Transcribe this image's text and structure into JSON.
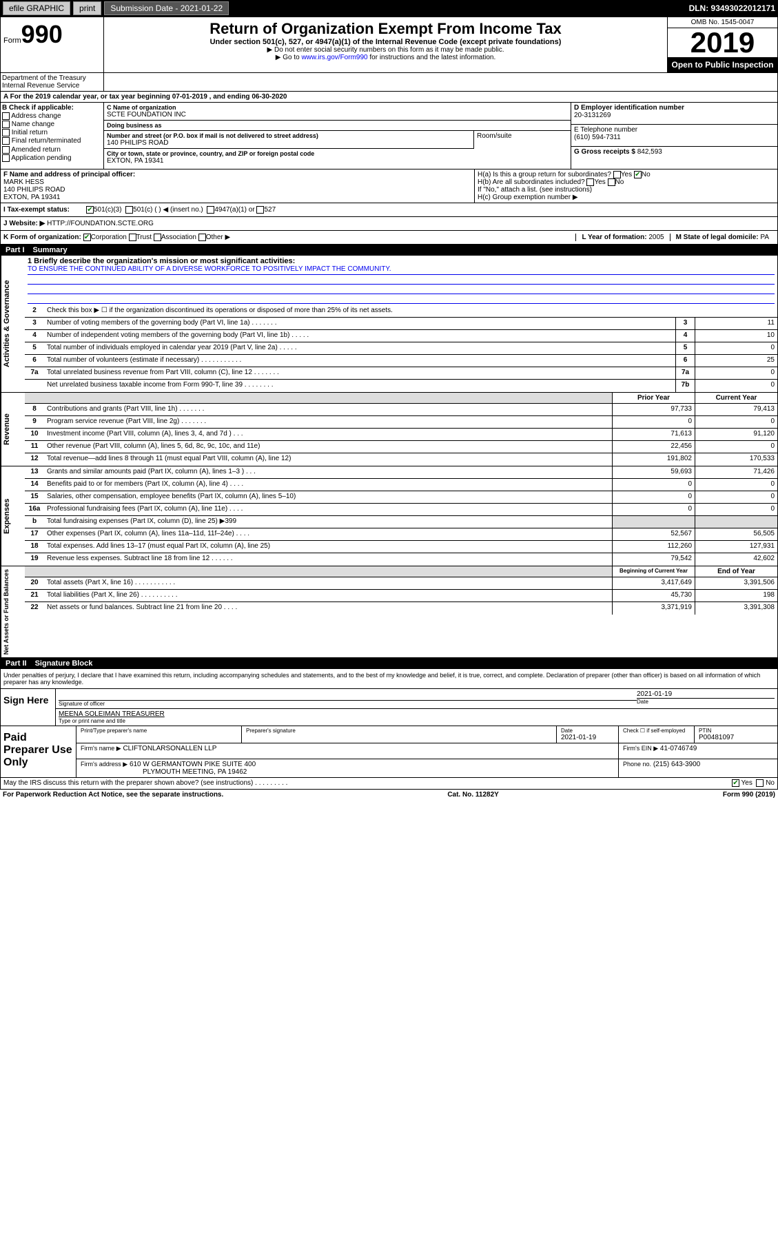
{
  "topbar": {
    "efile": "efile GRAPHIC",
    "print": "print",
    "submission": "Submission Date - 2021-01-22",
    "dln": "DLN: 93493022012171"
  },
  "header": {
    "form_label": "Form",
    "form_no": "990",
    "title": "Return of Organization Exempt From Income Tax",
    "subtitle": "Under section 501(c), 527, or 4947(a)(1) of the Internal Revenue Code (except private foundations)",
    "note1": "▶ Do not enter social security numbers on this form as it may be made public.",
    "note2_pre": "▶ Go to ",
    "note2_link": "www.irs.gov/Form990",
    "note2_post": " for instructions and the latest information.",
    "omb": "OMB No. 1545-0047",
    "year": "2019",
    "open_public": "Open to Public Inspection",
    "dept": "Department of the Treasury\nInternal Revenue Service"
  },
  "period": "A For the 2019 calendar year, or tax year beginning 07-01-2019    , and ending 06-30-2020",
  "section_b": {
    "label": "B Check if applicable:",
    "items": [
      "Address change",
      "Name change",
      "Initial return",
      "Final return/terminated",
      "Amended return",
      "Application pending"
    ]
  },
  "section_c": {
    "name_label": "C Name of organization",
    "name": "SCTE FOUNDATION INC",
    "dba_label": "Doing business as",
    "dba": "",
    "street_label": "Number and street (or P.O. box if mail is not delivered to street address)",
    "street": "140 PHILIPS ROAD",
    "room_label": "Room/suite",
    "city_label": "City or town, state or province, country, and ZIP or foreign postal code",
    "city": "EXTON, PA  19341"
  },
  "section_d": {
    "label": "D Employer identification number",
    "value": "20-3131269"
  },
  "section_e": {
    "label": "E Telephone number",
    "value": "(610) 594-7311"
  },
  "section_g": {
    "label": "G Gross receipts $",
    "value": "842,593"
  },
  "officer": {
    "label": "F  Name and address of principal officer:",
    "name": "MARK HESS",
    "street": "140 PHILIPS ROAD",
    "city": "EXTON, PA  19341"
  },
  "section_h": {
    "ha": "H(a)  Is this a group return for subordinates?",
    "hb": "H(b)  Are all subordinates included?",
    "hb_note": "If \"No,\" attach a list. (see instructions)",
    "hc": "H(c)  Group exemption number ▶"
  },
  "tax_status": {
    "label": "I    Tax-exempt status:",
    "opt1": "501(c)(3)",
    "opt2": "501(c) (  ) ◀ (insert no.)",
    "opt3": "4947(a)(1) or",
    "opt4": "527"
  },
  "website": {
    "label": "J   Website: ▶",
    "value": "HTTP://FOUNDATION.SCTE.ORG"
  },
  "form_org": {
    "k_label": "K Form of organization:",
    "corp": "Corporation",
    "trust": "Trust",
    "assoc": "Association",
    "other": "Other ▶",
    "l_label": "L Year of formation:",
    "l_val": "2005",
    "m_label": "M State of legal domicile:",
    "m_val": "PA"
  },
  "part1": {
    "num": "Part I",
    "title": "Summary"
  },
  "governance": {
    "label": "Activities & Governance",
    "l1": "1  Briefly describe the organization's mission or most significant activities:",
    "mission": "TO ENSURE THE CONTINUED ABILITY OF A DIVERSE WORKFORCE TO POSITIVELY IMPACT THE COMMUNITY.",
    "l2": "Check this box ▶ ☐  if the organization discontinued its operations or disposed of more than 25% of its net assets.",
    "lines": [
      {
        "n": "3",
        "d": "Number of voting members of the governing body (Part VI, line 1a)  .   .   .   .   .   .   .",
        "c": "3",
        "v": "11"
      },
      {
        "n": "4",
        "d": "Number of independent voting members of the governing body (Part VI, line 1b)  .   .   .   .   .",
        "c": "4",
        "v": "10"
      },
      {
        "n": "5",
        "d": "Total number of individuals employed in calendar year 2019 (Part V, line 2a)  .   .   .   .   .",
        "c": "5",
        "v": "0"
      },
      {
        "n": "6",
        "d": "Total number of volunteers (estimate if necessary)  .   .   .   .   .   .   .   .   .   .   .",
        "c": "6",
        "v": "25"
      },
      {
        "n": "7a",
        "d": "Total unrelated business revenue from Part VIII, column (C), line 12  .   .   .   .   .   .   .",
        "c": "7a",
        "v": "0"
      },
      {
        "n": "",
        "d": "Net unrelated business taxable income from Form 990-T, line 39  .   .   .   .   .   .   .   .",
        "c": "7b",
        "v": "0"
      }
    ]
  },
  "revenue": {
    "label": "Revenue",
    "prior_hdr": "Prior Year",
    "current_hdr": "Current Year",
    "lines": [
      {
        "n": "8",
        "d": "Contributions and grants (Part VIII, line 1h)  .   .   .   .   .   .   .",
        "py": "97,733",
        "cy": "79,413"
      },
      {
        "n": "9",
        "d": "Program service revenue (Part VIII, line 2g)  .   .   .   .   .   .   .",
        "py": "0",
        "cy": "0"
      },
      {
        "n": "10",
        "d": "Investment income (Part VIII, column (A), lines 3, 4, and 7d )   .   .   .",
        "py": "71,613",
        "cy": "91,120"
      },
      {
        "n": "11",
        "d": "Other revenue (Part VIII, column (A), lines 5, 6d, 8c, 9c, 10c, and 11e)",
        "py": "22,456",
        "cy": "0"
      },
      {
        "n": "12",
        "d": "Total revenue—add lines 8 through 11 (must equal Part VIII, column (A), line 12)",
        "py": "191,802",
        "cy": "170,533"
      }
    ]
  },
  "expenses": {
    "label": "Expenses",
    "lines": [
      {
        "n": "13",
        "d": "Grants and similar amounts paid (Part IX, column (A), lines 1–3 )   .   .   .",
        "py": "59,693",
        "cy": "71,426"
      },
      {
        "n": "14",
        "d": "Benefits paid to or for members (Part IX, column (A), line 4)  .   .   .   .",
        "py": "0",
        "cy": "0"
      },
      {
        "n": "15",
        "d": "Salaries, other compensation, employee benefits (Part IX, column (A), lines 5–10)",
        "py": "0",
        "cy": "0"
      },
      {
        "n": "16a",
        "d": "Professional fundraising fees (Part IX, column (A), line 11e)  .   .   .   .",
        "py": "0",
        "cy": "0"
      },
      {
        "n": "b",
        "d": "Total fundraising expenses (Part IX, column (D), line 25) ▶399",
        "py": "",
        "cy": "",
        "shade": true
      },
      {
        "n": "17",
        "d": "Other expenses (Part IX, column (A), lines 11a–11d, 11f–24e)  .   .   .   .",
        "py": "52,567",
        "cy": "56,505"
      },
      {
        "n": "18",
        "d": "Total expenses. Add lines 13–17 (must equal Part IX, column (A), line 25)",
        "py": "112,260",
        "cy": "127,931"
      },
      {
        "n": "19",
        "d": "Revenue less expenses. Subtract line 18 from line 12  .   .   .   .   .   .",
        "py": "79,542",
        "cy": "42,602"
      }
    ]
  },
  "netassets": {
    "label": "Net Assets or Fund Balances",
    "begin_hdr": "Beginning of Current Year",
    "end_hdr": "End of Year",
    "lines": [
      {
        "n": "20",
        "d": "Total assets (Part X, line 16)  .   .   .   .   .   .   .   .   .   .   .",
        "py": "3,417,649",
        "cy": "3,391,506"
      },
      {
        "n": "21",
        "d": "Total liabilities (Part X, line 26)  .   .   .   .   .   .   .   .   .   .",
        "py": "45,730",
        "cy": "198"
      },
      {
        "n": "22",
        "d": "Net assets or fund balances. Subtract line 21 from line 20  .   .   .   .",
        "py": "3,371,919",
        "cy": "3,391,308"
      }
    ]
  },
  "part2": {
    "num": "Part II",
    "title": "Signature Block"
  },
  "perjury": "Under penalties of perjury, I declare that I have examined this return, including accompanying schedules and statements, and to the best of my knowledge and belief, it is true, correct, and complete. Declaration of preparer (other than officer) is based on all information of which preparer has any knowledge.",
  "sign": {
    "here": "Sign Here",
    "sig_label": "Signature of officer",
    "date": "2021-01-19",
    "date_label": "Date",
    "name": "MEENA SOLEIMAN TREASURER",
    "name_label": "Type or print name and title"
  },
  "paid": {
    "label": "Paid Preparer Use Only",
    "prep_name_label": "Print/Type preparer's name",
    "prep_sig_label": "Preparer's signature",
    "date_label": "Date",
    "date": "2021-01-19",
    "check_label": "Check ☐ if self-employed",
    "ptin_label": "PTIN",
    "ptin": "P00481097",
    "firm_name_label": "Firm's name    ▶",
    "firm_name": "CLIFTONLARSONALLEN LLP",
    "firm_ein_label": "Firm's EIN ▶",
    "firm_ein": "41-0746749",
    "firm_addr_label": "Firm's address ▶",
    "firm_addr1": "610 W GERMANTOWN PIKE SUITE 400",
    "firm_addr2": "PLYMOUTH MEETING, PA  19462",
    "phone_label": "Phone no.",
    "phone": "(215) 643-3900"
  },
  "discuss": {
    "text": "May the IRS discuss this return with the preparer shown above? (see instructions)   .   .   .   .   .   .   .   .   .",
    "yes": "Yes",
    "no": "No"
  },
  "footer": {
    "pra": "For Paperwork Reduction Act Notice, see the separate instructions.",
    "cat": "Cat. No. 11282Y",
    "form": "Form 990 (2019)"
  }
}
